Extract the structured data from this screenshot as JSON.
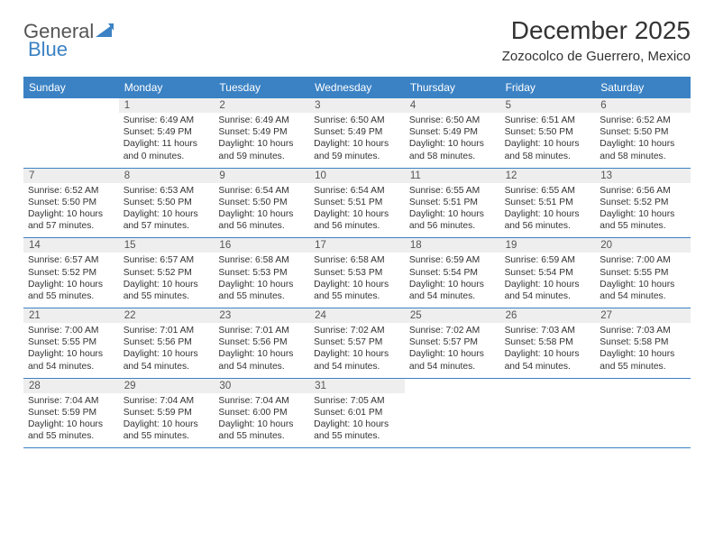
{
  "logo": {
    "text1": "General",
    "text2": "Blue"
  },
  "title": "December 2025",
  "subtitle": "Zozocolco de Guerrero, Mexico",
  "colors": {
    "brand": "#3b82c4",
    "gray_row": "#eeeeee",
    "text": "#333333",
    "logo_gray": "#555555",
    "bg": "#ffffff"
  },
  "day_labels": [
    "Sunday",
    "Monday",
    "Tuesday",
    "Wednesday",
    "Thursday",
    "Friday",
    "Saturday"
  ],
  "weeks": [
    [
      {
        "blank": true
      },
      {
        "n": "1",
        "sr": "Sunrise: 6:49 AM",
        "ss": "Sunset: 5:49 PM",
        "dl": "Daylight: 11 hours and 0 minutes."
      },
      {
        "n": "2",
        "sr": "Sunrise: 6:49 AM",
        "ss": "Sunset: 5:49 PM",
        "dl": "Daylight: 10 hours and 59 minutes."
      },
      {
        "n": "3",
        "sr": "Sunrise: 6:50 AM",
        "ss": "Sunset: 5:49 PM",
        "dl": "Daylight: 10 hours and 59 minutes."
      },
      {
        "n": "4",
        "sr": "Sunrise: 6:50 AM",
        "ss": "Sunset: 5:49 PM",
        "dl": "Daylight: 10 hours and 58 minutes."
      },
      {
        "n": "5",
        "sr": "Sunrise: 6:51 AM",
        "ss": "Sunset: 5:50 PM",
        "dl": "Daylight: 10 hours and 58 minutes."
      },
      {
        "n": "6",
        "sr": "Sunrise: 6:52 AM",
        "ss": "Sunset: 5:50 PM",
        "dl": "Daylight: 10 hours and 58 minutes."
      }
    ],
    [
      {
        "n": "7",
        "sr": "Sunrise: 6:52 AM",
        "ss": "Sunset: 5:50 PM",
        "dl": "Daylight: 10 hours and 57 minutes."
      },
      {
        "n": "8",
        "sr": "Sunrise: 6:53 AM",
        "ss": "Sunset: 5:50 PM",
        "dl": "Daylight: 10 hours and 57 minutes."
      },
      {
        "n": "9",
        "sr": "Sunrise: 6:54 AM",
        "ss": "Sunset: 5:50 PM",
        "dl": "Daylight: 10 hours and 56 minutes."
      },
      {
        "n": "10",
        "sr": "Sunrise: 6:54 AM",
        "ss": "Sunset: 5:51 PM",
        "dl": "Daylight: 10 hours and 56 minutes."
      },
      {
        "n": "11",
        "sr": "Sunrise: 6:55 AM",
        "ss": "Sunset: 5:51 PM",
        "dl": "Daylight: 10 hours and 56 minutes."
      },
      {
        "n": "12",
        "sr": "Sunrise: 6:55 AM",
        "ss": "Sunset: 5:51 PM",
        "dl": "Daylight: 10 hours and 56 minutes."
      },
      {
        "n": "13",
        "sr": "Sunrise: 6:56 AM",
        "ss": "Sunset: 5:52 PM",
        "dl": "Daylight: 10 hours and 55 minutes."
      }
    ],
    [
      {
        "n": "14",
        "sr": "Sunrise: 6:57 AM",
        "ss": "Sunset: 5:52 PM",
        "dl": "Daylight: 10 hours and 55 minutes."
      },
      {
        "n": "15",
        "sr": "Sunrise: 6:57 AM",
        "ss": "Sunset: 5:52 PM",
        "dl": "Daylight: 10 hours and 55 minutes."
      },
      {
        "n": "16",
        "sr": "Sunrise: 6:58 AM",
        "ss": "Sunset: 5:53 PM",
        "dl": "Daylight: 10 hours and 55 minutes."
      },
      {
        "n": "17",
        "sr": "Sunrise: 6:58 AM",
        "ss": "Sunset: 5:53 PM",
        "dl": "Daylight: 10 hours and 55 minutes."
      },
      {
        "n": "18",
        "sr": "Sunrise: 6:59 AM",
        "ss": "Sunset: 5:54 PM",
        "dl": "Daylight: 10 hours and 54 minutes."
      },
      {
        "n": "19",
        "sr": "Sunrise: 6:59 AM",
        "ss": "Sunset: 5:54 PM",
        "dl": "Daylight: 10 hours and 54 minutes."
      },
      {
        "n": "20",
        "sr": "Sunrise: 7:00 AM",
        "ss": "Sunset: 5:55 PM",
        "dl": "Daylight: 10 hours and 54 minutes."
      }
    ],
    [
      {
        "n": "21",
        "sr": "Sunrise: 7:00 AM",
        "ss": "Sunset: 5:55 PM",
        "dl": "Daylight: 10 hours and 54 minutes."
      },
      {
        "n": "22",
        "sr": "Sunrise: 7:01 AM",
        "ss": "Sunset: 5:56 PM",
        "dl": "Daylight: 10 hours and 54 minutes."
      },
      {
        "n": "23",
        "sr": "Sunrise: 7:01 AM",
        "ss": "Sunset: 5:56 PM",
        "dl": "Daylight: 10 hours and 54 minutes."
      },
      {
        "n": "24",
        "sr": "Sunrise: 7:02 AM",
        "ss": "Sunset: 5:57 PM",
        "dl": "Daylight: 10 hours and 54 minutes."
      },
      {
        "n": "25",
        "sr": "Sunrise: 7:02 AM",
        "ss": "Sunset: 5:57 PM",
        "dl": "Daylight: 10 hours and 54 minutes."
      },
      {
        "n": "26",
        "sr": "Sunrise: 7:03 AM",
        "ss": "Sunset: 5:58 PM",
        "dl": "Daylight: 10 hours and 54 minutes."
      },
      {
        "n": "27",
        "sr": "Sunrise: 7:03 AM",
        "ss": "Sunset: 5:58 PM",
        "dl": "Daylight: 10 hours and 55 minutes."
      }
    ],
    [
      {
        "n": "28",
        "sr": "Sunrise: 7:04 AM",
        "ss": "Sunset: 5:59 PM",
        "dl": "Daylight: 10 hours and 55 minutes."
      },
      {
        "n": "29",
        "sr": "Sunrise: 7:04 AM",
        "ss": "Sunset: 5:59 PM",
        "dl": "Daylight: 10 hours and 55 minutes."
      },
      {
        "n": "30",
        "sr": "Sunrise: 7:04 AM",
        "ss": "Sunset: 6:00 PM",
        "dl": "Daylight: 10 hours and 55 minutes."
      },
      {
        "n": "31",
        "sr": "Sunrise: 7:05 AM",
        "ss": "Sunset: 6:01 PM",
        "dl": "Daylight: 10 hours and 55 minutes."
      },
      {
        "blank": true
      },
      {
        "blank": true
      },
      {
        "blank": true
      }
    ]
  ]
}
